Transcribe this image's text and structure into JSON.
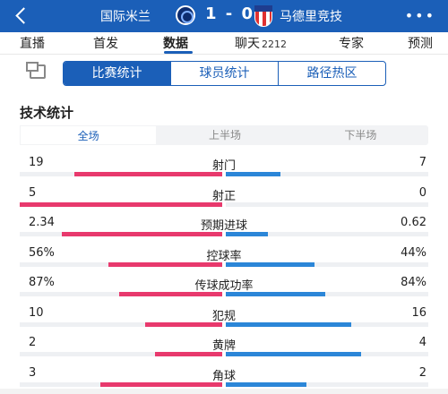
{
  "header": {
    "back_icon": "back-arrow-icon",
    "home_team": "国际米兰",
    "away_team": "马德里竞技",
    "score": "1 - 0",
    "more_icon": "more-icon"
  },
  "tabs": [
    {
      "label": "直播",
      "active": false
    },
    {
      "label": "首发",
      "active": false
    },
    {
      "label": "数据",
      "active": true
    },
    {
      "label": "聊天",
      "count": "2212",
      "active": false
    },
    {
      "label": "专家",
      "active": false
    },
    {
      "label": "预测",
      "active": false
    }
  ],
  "segments": [
    {
      "label": "比赛统计",
      "active": true
    },
    {
      "label": "球员统计",
      "active": false
    },
    {
      "label": "路径热区",
      "active": false
    }
  ],
  "section_title": "技术统计",
  "periods": [
    {
      "label": "全场",
      "active": true
    },
    {
      "label": "上半场",
      "active": false
    },
    {
      "label": "下半场",
      "active": false
    }
  ],
  "colors": {
    "brand": "#1b5fb8",
    "home": "#e8396d",
    "away": "#2b86d8"
  },
  "stats": [
    {
      "name": "射门",
      "home": "19",
      "away": "7",
      "home_share": 0.73,
      "away_share": 0.27
    },
    {
      "name": "射正",
      "home": "5",
      "away": "0",
      "home_share": 1.0,
      "away_share": 0.0
    },
    {
      "name": "预期进球",
      "home": "2.34",
      "away": "0.62",
      "home_share": 0.79,
      "away_share": 0.21
    },
    {
      "name": "控球率",
      "home": "56%",
      "away": "44%",
      "home_share": 0.56,
      "away_share": 0.44
    },
    {
      "name": "传球成功率",
      "home": "87%",
      "away": "84%",
      "home_share": 0.51,
      "away_share": 0.49
    },
    {
      "name": "犯规",
      "home": "10",
      "away": "16",
      "home_share": 0.38,
      "away_share": 0.62
    },
    {
      "name": "黄牌",
      "home": "2",
      "away": "4",
      "home_share": 0.33,
      "away_share": 0.67
    },
    {
      "name": "角球",
      "home": "3",
      "away": "2",
      "home_share": 0.6,
      "away_share": 0.4
    }
  ]
}
